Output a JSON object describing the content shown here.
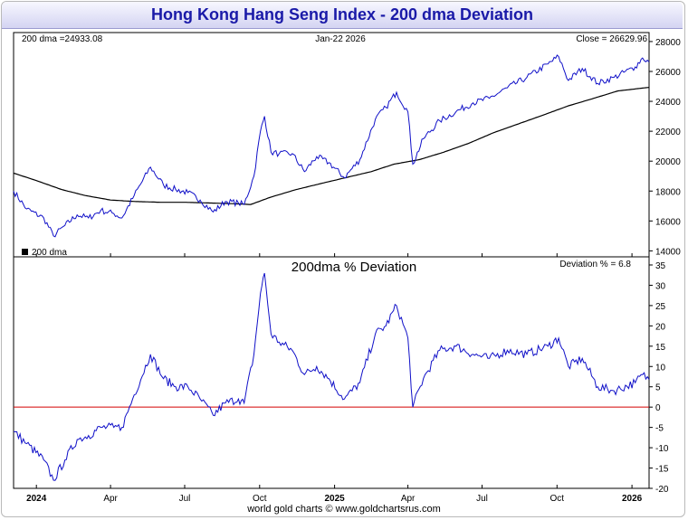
{
  "title": "Hong Kong Hang Seng Index - 200 dma Deviation",
  "footer": "world gold charts © www.goldchartsrus.com",
  "colors": {
    "title_text": "#1a1aa8",
    "price_line": "#1010c8",
    "dma_line": "#000000",
    "deviation_line": "#1010c8",
    "zero_line": "#d40000"
  },
  "x_axis": {
    "labels": [
      "2024",
      "Apr",
      "Jul",
      "Oct",
      "2025",
      "Apr",
      "Jul",
      "Oct",
      "2026"
    ],
    "bold_labels": [
      "2024",
      "2025",
      "2026"
    ]
  },
  "chart_data": [
    {
      "type": "line",
      "panel": "price",
      "header_left": "200 dma =24933.08",
      "header_center": "Jan-22  2026",
      "header_right": "Close = 26629.96",
      "legend": "200 dma",
      "legend_position": "bottom-left",
      "y_ticks": [
        "28000",
        "26000",
        "24000",
        "22000",
        "20000",
        "18000",
        "16000",
        "14000"
      ],
      "ylim": [
        13600,
        28600
      ],
      "x_range": [
        "2023-12-04",
        "2026-01-22"
      ],
      "series": [
        {
          "name": "200 dma",
          "points": [
            [
              "2023-12-04",
              19200
            ],
            [
              "2024-01-01",
              18700
            ],
            [
              "2024-02-01",
              18100
            ],
            [
              "2024-03-01",
              17700
            ],
            [
              "2024-04-01",
              17400
            ],
            [
              "2024-05-01",
              17300
            ],
            [
              "2024-06-01",
              17250
            ],
            [
              "2024-07-01",
              17250
            ],
            [
              "2024-08-01",
              17200
            ],
            [
              "2024-09-01",
              17150
            ],
            [
              "2024-09-20",
              17100
            ],
            [
              "2024-10-15",
              17600
            ],
            [
              "2024-11-15",
              18100
            ],
            [
              "2024-12-15",
              18500
            ],
            [
              "2025-01-15",
              18900
            ],
            [
              "2025-02-15",
              19300
            ],
            [
              "2025-03-15",
              19800
            ],
            [
              "2025-04-15",
              20100
            ],
            [
              "2025-05-15",
              20600
            ],
            [
              "2025-06-15",
              21200
            ],
            [
              "2025-07-15",
              21900
            ],
            [
              "2025-08-15",
              22500
            ],
            [
              "2025-09-15",
              23100
            ],
            [
              "2025-10-15",
              23700
            ],
            [
              "2025-11-15",
              24200
            ],
            [
              "2025-12-15",
              24700
            ],
            [
              "2026-01-22",
              24933
            ]
          ]
        },
        {
          "name": "",
          "points": [
            [
              "2023-12-04",
              18000
            ],
            [
              "2023-12-20",
              16800
            ],
            [
              "2024-01-10",
              16200
            ],
            [
              "2024-01-22",
              15000
            ],
            [
              "2024-02-05",
              15700
            ],
            [
              "2024-02-20",
              16400
            ],
            [
              "2024-03-05",
              16200
            ],
            [
              "2024-03-20",
              16700
            ],
            [
              "2024-04-05",
              16500
            ],
            [
              "2024-04-15",
              16200
            ],
            [
              "2024-04-30",
              17700
            ],
            [
              "2024-05-20",
              19600
            ],
            [
              "2024-06-05",
              18400
            ],
            [
              "2024-06-20",
              18100
            ],
            [
              "2024-07-05",
              17900
            ],
            [
              "2024-07-20",
              17400
            ],
            [
              "2024-08-05",
              16600
            ],
            [
              "2024-08-20",
              17300
            ],
            [
              "2024-09-05",
              17200
            ],
            [
              "2024-09-12",
              17100
            ],
            [
              "2024-09-24",
              19000
            ],
            [
              "2024-10-02",
              22000
            ],
            [
              "2024-10-07",
              23000
            ],
            [
              "2024-10-15",
              20600
            ],
            [
              "2024-10-25",
              20500
            ],
            [
              "2024-11-10",
              20500
            ],
            [
              "2024-11-25",
              19300
            ],
            [
              "2024-12-10",
              20300
            ],
            [
              "2024-12-25",
              19900
            ],
            [
              "2025-01-13",
              18900
            ],
            [
              "2025-02-01",
              20100
            ],
            [
              "2025-02-20",
              22800
            ],
            [
              "2025-03-05",
              23600
            ],
            [
              "2025-03-18",
              24600
            ],
            [
              "2025-04-01",
              23300
            ],
            [
              "2025-04-07",
              19800
            ],
            [
              "2025-04-20",
              21500
            ],
            [
              "2025-05-10",
              22700
            ],
            [
              "2025-05-30",
              23300
            ],
            [
              "2025-06-20",
              23900
            ],
            [
              "2025-07-10",
              24200
            ],
            [
              "2025-08-01",
              24900
            ],
            [
              "2025-08-25",
              25600
            ],
            [
              "2025-09-20",
              26500
            ],
            [
              "2025-10-03",
              27000
            ],
            [
              "2025-10-15",
              25400
            ],
            [
              "2025-11-01",
              26200
            ],
            [
              "2025-11-20",
              25200
            ],
            [
              "2025-12-10",
              25600
            ],
            [
              "2026-01-05",
              26300
            ],
            [
              "2026-01-14",
              26900
            ],
            [
              "2026-01-22",
              26630
            ]
          ]
        }
      ]
    },
    {
      "type": "line",
      "panel": "deviation",
      "title": "200dma  %  Deviation",
      "header_right": "Deviation % = 6.8",
      "y_ticks": [
        "35",
        "30",
        "25",
        "20",
        "15",
        "10",
        "5",
        "0",
        "-5",
        "-10",
        "-15",
        "-20"
      ],
      "ylim": [
        -20,
        37
      ],
      "x_range": [
        "2023-12-04",
        "2026-01-22"
      ],
      "reference_line": 0,
      "series": [
        {
          "name": "",
          "points": [
            [
              "2023-12-04",
              -6
            ],
            [
              "2023-12-20",
              -9
            ],
            [
              "2024-01-10",
              -13
            ],
            [
              "2024-01-22",
              -18
            ],
            [
              "2024-02-05",
              -13
            ],
            [
              "2024-02-20",
              -8
            ],
            [
              "2024-03-05",
              -7
            ],
            [
              "2024-03-20",
              -5
            ],
            [
              "2024-04-05",
              -5
            ],
            [
              "2024-04-15",
              -5
            ],
            [
              "2024-04-30",
              3
            ],
            [
              "2024-05-20",
              13
            ],
            [
              "2024-06-05",
              7
            ],
            [
              "2024-06-20",
              5
            ],
            [
              "2024-07-05",
              5
            ],
            [
              "2024-07-20",
              2
            ],
            [
              "2024-08-05",
              -2
            ],
            [
              "2024-08-20",
              1
            ],
            [
              "2024-09-05",
              2
            ],
            [
              "2024-09-12",
              1
            ],
            [
              "2024-09-24",
              13
            ],
            [
              "2024-10-02",
              28
            ],
            [
              "2024-10-07",
              33
            ],
            [
              "2024-10-15",
              18
            ],
            [
              "2024-10-25",
              16
            ],
            [
              "2024-11-10",
              14
            ],
            [
              "2024-11-25",
              8
            ],
            [
              "2024-12-10",
              10
            ],
            [
              "2024-12-25",
              7
            ],
            [
              "2025-01-13",
              2
            ],
            [
              "2025-02-01",
              6
            ],
            [
              "2025-02-20",
              18
            ],
            [
              "2025-03-05",
              20
            ],
            [
              "2025-03-18",
              25
            ],
            [
              "2025-04-01",
              17
            ],
            [
              "2025-04-07",
              0
            ],
            [
              "2025-04-20",
              7
            ],
            [
              "2025-05-10",
              14
            ],
            [
              "2025-05-30",
              15
            ],
            [
              "2025-06-20",
              13
            ],
            [
              "2025-07-10",
              12
            ],
            [
              "2025-08-01",
              14
            ],
            [
              "2025-08-25",
              13
            ],
            [
              "2025-09-20",
              15
            ],
            [
              "2025-10-03",
              17
            ],
            [
              "2025-10-15",
              10
            ],
            [
              "2025-11-01",
              12
            ],
            [
              "2025-11-20",
              5
            ],
            [
              "2025-12-10",
              4
            ],
            [
              "2026-01-05",
              6
            ],
            [
              "2026-01-14",
              8
            ],
            [
              "2026-01-22",
              6.8
            ]
          ]
        }
      ]
    }
  ]
}
